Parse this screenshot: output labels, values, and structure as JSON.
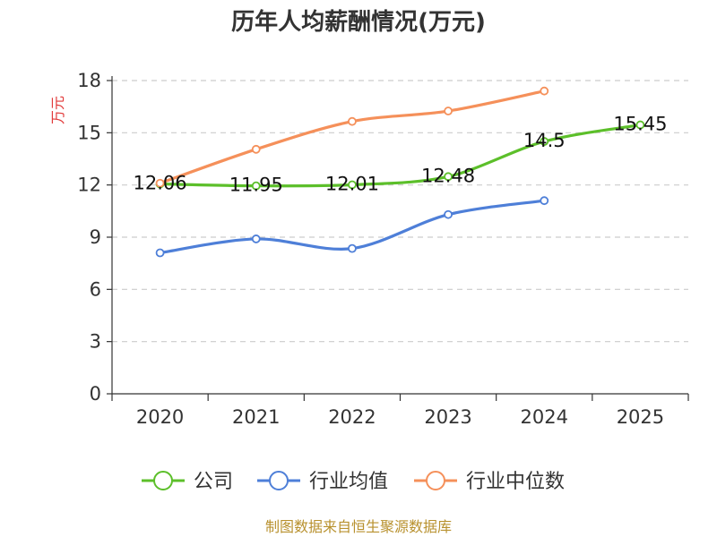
{
  "chart_data": {
    "type": "line",
    "title": "历年人均薪酬情况(万元)",
    "ylabel": "万元",
    "xlabel": "",
    "categories": [
      "2020",
      "2021",
      "2022",
      "2023",
      "2024",
      "2025"
    ],
    "ylim": [
      0,
      18
    ],
    "yticks": [
      0,
      3,
      6,
      9,
      12,
      15,
      18
    ],
    "grid": true,
    "legend_position": "bottom",
    "series": [
      {
        "name": "公司",
        "color": "#5cbf2a",
        "values": [
          12.06,
          11.95,
          12.01,
          12.48,
          14.5,
          15.45
        ],
        "data_labels": [
          "12.06",
          "11.95",
          "12.01",
          "12.48",
          "14.5",
          "15.45"
        ]
      },
      {
        "name": "行业均值",
        "color": "#4e7fd8",
        "values": [
          8.1,
          8.9,
          8.35,
          10.3,
          11.1,
          null
        ]
      },
      {
        "name": "行业中位数",
        "color": "#f5905a",
        "values": [
          12.1,
          14.05,
          15.65,
          16.25,
          17.4,
          null
        ]
      }
    ],
    "source_note": "制图数据来自恒生聚源数据库"
  }
}
